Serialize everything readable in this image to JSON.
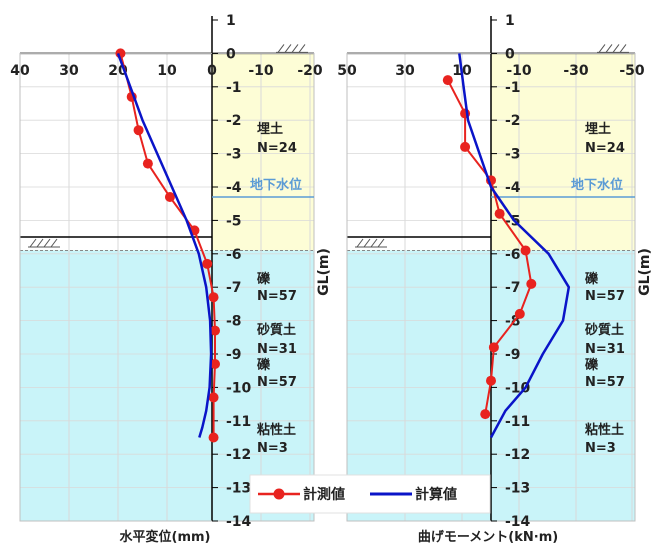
{
  "depth_axis": {
    "label": "GL(m)",
    "ticks": [
      "1",
      "0",
      "-1",
      "-2",
      "-3",
      "-4",
      "-5",
      "-6",
      "-7",
      "-8",
      "-9",
      "-10",
      "-11",
      "-12",
      "-13",
      "-14"
    ]
  },
  "soil_layers": [
    {
      "name": "埋土",
      "n_value": "N=24",
      "top": 0,
      "bottom": -6,
      "color": "#fdfdd6"
    },
    {
      "name": "礫",
      "n_value": "N=57",
      "top": -6,
      "bottom": -8,
      "color": "#d7f6cc"
    },
    {
      "name": "砂質土",
      "n_value": "N=31",
      "top": -8,
      "bottom": -9.1,
      "color": "#fdfdd6"
    },
    {
      "name": "礫",
      "n_value": "N=57",
      "top": -9.1,
      "bottom": -10.1,
      "color": "#d7f6cc"
    },
    {
      "name": "粘性土",
      "n_value": "N=3",
      "top": -10.1,
      "bottom": -14,
      "color": "#c9f4f9"
    }
  ],
  "water_table": {
    "label": "地下水位",
    "depth": -4.3,
    "color": "#5b9bd5"
  },
  "legend": {
    "measured": "計測値",
    "calculated": "計算値"
  },
  "colors": {
    "measured": "#e8231f",
    "calculated": "#0a14c8"
  },
  "chart_data": [
    {
      "type": "line",
      "xlabel": "水平変位(mm)",
      "ylabel": "GL(m)",
      "x_ticks": [
        "40",
        "30",
        "20",
        "10",
        "0",
        "-10",
        "-20"
      ],
      "xlim": [
        40,
        -20
      ],
      "ylim": [
        -14,
        1
      ],
      "series": [
        {
          "name": "計測値",
          "x": [
            19.5,
            17.2,
            15.8,
            13.9,
            9.4,
            4.4,
            1.8,
            0.5,
            0.2,
            0.2,
            0.5,
            0.5
          ],
          "y": [
            0,
            -1.3,
            -2.3,
            -3.3,
            -4.3,
            -5.3,
            -6.3,
            -7.3,
            -8.3,
            -9.3,
            -10.3,
            -11.5
          ]
        },
        {
          "name": "計算値",
          "x": [
            20,
            17.5,
            15,
            12,
            9,
            6,
            3.5,
            2,
            1.2,
            1,
            1.3,
            2,
            2.8,
            3.4
          ],
          "y": [
            0,
            -1,
            -2,
            -3,
            -4,
            -5,
            -6,
            -7,
            -8,
            -9,
            -10,
            -10.7,
            -11.2,
            -11.5
          ]
        }
      ]
    },
    {
      "type": "line",
      "xlabel": "曲げモーメント(kN·m)",
      "ylabel": "GL(m)",
      "x_ticks": [
        "50",
        "30",
        "10",
        "-10",
        "-30",
        "-50"
      ],
      "xlim": [
        50,
        -50
      ],
      "ylim": [
        -14,
        1
      ],
      "series": [
        {
          "name": "計測値",
          "x": [
            15,
            9,
            9,
            0,
            -3,
            -12,
            -14,
            -10,
            -1,
            0,
            2
          ],
          "y": [
            -0.8,
            -1.8,
            -2.8,
            -3.8,
            -4.8,
            -5.9,
            -6.9,
            -7.8,
            -8.8,
            -9.8,
            -10.8
          ]
        },
        {
          "name": "計算値",
          "x": [
            11,
            9.5,
            8,
            4,
            0,
            -8,
            -20,
            -27,
            -25,
            -18,
            -12,
            -5,
            0
          ],
          "y": [
            0,
            -1,
            -2,
            -3,
            -4,
            -5,
            -6,
            -7,
            -8,
            -9,
            -10,
            -10.7,
            -11.5
          ]
        }
      ]
    }
  ]
}
